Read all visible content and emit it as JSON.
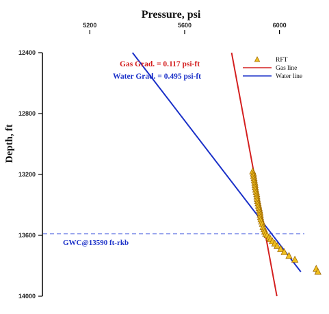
{
  "chart_data": {
    "type": "scatter",
    "title": "Pressure, psi",
    "xlabel": "Pressure, psi",
    "ylabel": "Depth, ft",
    "x_axis_position": "top",
    "y_inverted": true,
    "xlim": [
      5000,
      6180
    ],
    "ylim": [
      12400,
      14000
    ],
    "x_ticks": [
      5200,
      5600,
      6000
    ],
    "y_ticks": [
      12400,
      12800,
      13200,
      13600,
      14000
    ],
    "grid": false,
    "legend_position": "top-right",
    "series": [
      {
        "name": "RFT",
        "kind": "points",
        "marker": "triangle",
        "color": "#f0c020",
        "edge_color": "#a06a00",
        "points": [
          [
            5887,
            13180
          ],
          [
            5890,
            13195
          ],
          [
            5891,
            13210
          ],
          [
            5893,
            13225
          ],
          [
            5894,
            13240
          ],
          [
            5896,
            13255
          ],
          [
            5897,
            13270
          ],
          [
            5898,
            13285
          ],
          [
            5900,
            13300
          ],
          [
            5902,
            13315
          ],
          [
            5904,
            13330
          ],
          [
            5905,
            13345
          ],
          [
            5906,
            13360
          ],
          [
            5908,
            13375
          ],
          [
            5910,
            13390
          ],
          [
            5912,
            13405
          ],
          [
            5914,
            13420
          ],
          [
            5916,
            13435
          ],
          [
            5918,
            13450
          ],
          [
            5919,
            13465
          ],
          [
            5920,
            13480
          ],
          [
            5922,
            13495
          ],
          [
            5925,
            13510
          ],
          [
            5928,
            13525
          ],
          [
            5931,
            13545
          ],
          [
            5935,
            13560
          ],
          [
            5938,
            13575
          ],
          [
            5942,
            13590
          ],
          [
            5948,
            13600
          ],
          [
            5956,
            13615
          ],
          [
            5962,
            13625
          ],
          [
            5970,
            13640
          ],
          [
            5980,
            13655
          ],
          [
            5990,
            13670
          ],
          [
            6005,
            13690
          ],
          [
            6020,
            13710
          ],
          [
            6040,
            13735
          ],
          [
            6065,
            13760
          ],
          [
            6155,
            13820
          ],
          [
            6162,
            13840
          ],
          [
            6250,
            13830
          ]
        ]
      },
      {
        "name": "Gas line",
        "kind": "line",
        "color": "#d42020",
        "points": [
          [
            5798,
            12400
          ],
          [
            5989,
            14000
          ]
        ]
      },
      {
        "name": "Water line",
        "kind": "line",
        "color": "#1a30c8",
        "points": [
          [
            5380,
            12400
          ],
          [
            6090,
            13840
          ]
        ]
      }
    ],
    "reference_line": {
      "y": 13590,
      "color": "#7888e8",
      "style": "dashed",
      "label": "GWC@13590 ft-rkb"
    },
    "annotations": [
      {
        "text": "Gas Grad. = 0.117 psi-ft",
        "color": "#d42020"
      },
      {
        "text": "Water Grad. = 0.495 psi-ft",
        "color": "#1a30c8"
      }
    ]
  }
}
